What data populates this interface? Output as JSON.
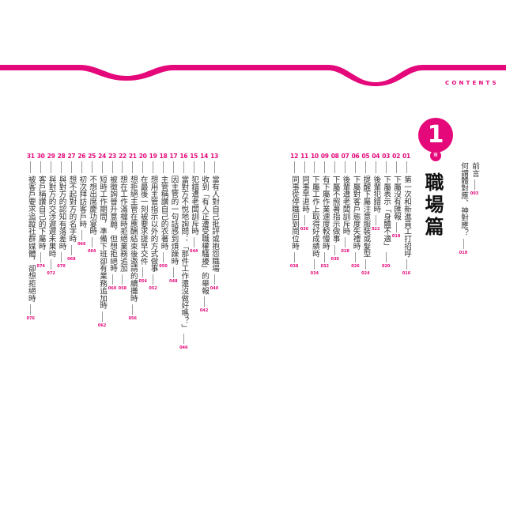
{
  "header": {
    "label": "CONTENTS",
    "accent": "#e4087a"
  },
  "preface": [
    {
      "title": "前言",
      "page": "003"
    },
    {
      "title": "何謂體對應、神對應？",
      "page": "010"
    }
  ],
  "part": {
    "number": "1",
    "chapter_char": "章",
    "title": "職場篇"
  },
  "entries": [
    {
      "num": "01",
      "title": "第一次和新進員工打招呼",
      "page": "016"
    },
    {
      "num": "02",
      "title": "下屬沒有匯報",
      "page": "018"
    },
    {
      "num": "03",
      "title": "下屬表示「身體不適」",
      "page": "020"
    },
    {
      "num": "04",
      "title": "後輩犯錯時",
      "page": "022"
    },
    {
      "num": "05",
      "title": "提醒下屬注意服裝或髮型",
      "page": "024"
    },
    {
      "num": "06",
      "title": "下屬對客戶態度失禮時",
      "page": "026"
    },
    {
      "num": "07",
      "title": "後輩遭老闆訓斥時",
      "page": "028"
    },
    {
      "num": "08",
      "title": "下屬不照著指示做事",
      "page": "030"
    },
    {
      "num": "09",
      "title": "有下屬作業速度較慢時",
      "page": "032"
    },
    {
      "num": "10",
      "title": "下屬工作上取得好成績時",
      "page": "034"
    },
    {
      "num": "11",
      "title": "同事早退時",
      "page": "036"
    },
    {
      "num": "12",
      "title": "同事從停職回到崗位時",
      "page": "038"
    },
    {
      "num": "13",
      "title": "當有人對自己批評或抱怨職場",
      "page": "040"
    },
    {
      "num": "14",
      "title": "收到「有人正遭受職權騷擾」的舉報",
      "page": "042"
    },
    {
      "num": "15",
      "title": "犯錯遭老闆訓斥時",
      "page": "044"
    },
    {
      "num": "16",
      "title": "當對方不悅地詢問：「那件工作還沒做好嗎？」",
      "page": "046"
    },
    {
      "num": "17",
      "title": "因主管的一句話感到煩躁時",
      "page": "048"
    },
    {
      "num": "18",
      "title": "主管稱讚自己的衣著時",
      "page": "050"
    },
    {
      "num": "19",
      "title": "想用主管指示以外的方式做事",
      "page": "052"
    },
    {
      "num": "20",
      "title": "在最後一刻被要求提早交件",
      "page": "054"
    },
    {
      "num": "21",
      "title": "想拒絕主管在應酬結束後邀請的續攤時",
      "page": "056"
    },
    {
      "num": "22",
      "title": "想在工作滿檔時拒絕業務追加",
      "page": "058"
    },
    {
      "num": "23",
      "title": "被徵詢晉升意願，但想拒絕時",
      "page": "060"
    },
    {
      "num": "24",
      "title": "短時工作期間，準備下班卻有業務追加時",
      "page": "062"
    },
    {
      "num": "25",
      "title": "不想出席慶功宴時",
      "page": "064"
    },
    {
      "num": "26",
      "title": "初次拜訪客戶時",
      "page": "066"
    },
    {
      "num": "27",
      "title": "想不起對方的名字時",
      "page": "068"
    },
    {
      "num": "28",
      "title": "與對方的認知有落差時",
      "page": "070"
    },
    {
      "num": "29",
      "title": "與對方的交涉遲遲未果時",
      "page": "072"
    },
    {
      "num": "30",
      "title": "客戶稱讚自己的下屬時",
      "page": "074"
    },
    {
      "num": "31",
      "title": "被客戶要求追蹤社群媒體，卻想拒絕時",
      "page": "076"
    }
  ]
}
